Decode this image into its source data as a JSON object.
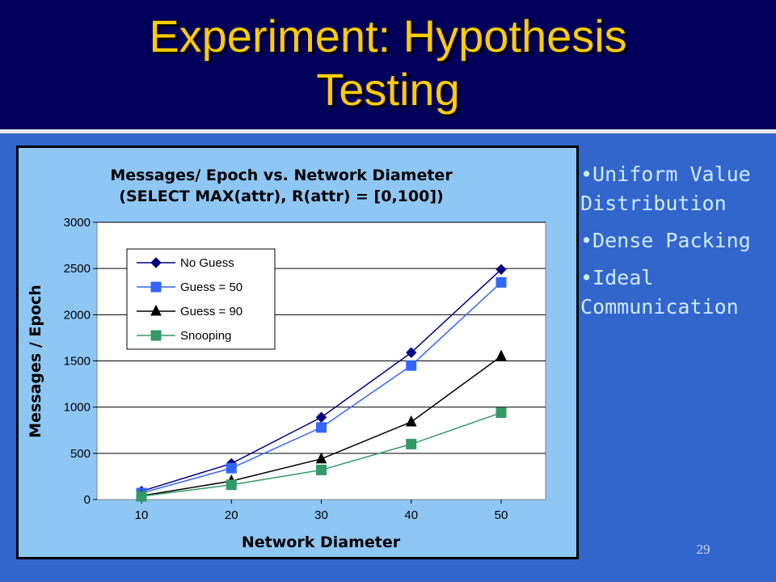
{
  "slide": {
    "title_line1": "Experiment: Hypothesis",
    "title_line2": "Testing",
    "bullets": [
      "•Uniform Value Distribution",
      "•Dense Packing",
      "•Ideal Communication"
    ],
    "page_number": "29"
  },
  "colors": {
    "title": "#ffcc00",
    "title_band": "#00005a",
    "slide_bg": "#3366cc",
    "chart_bg": "#8ec6f4",
    "bullet_text": "#ccecff"
  },
  "chart_data": {
    "type": "line",
    "title": "Messages/ Epoch vs. Network Diameter",
    "subtitle": "(SELECT MAX(attr), R(attr) = [0,100])",
    "xlabel": "Network Diameter",
    "ylabel": "Messages / Epoch",
    "x": [
      10,
      20,
      30,
      40,
      50
    ],
    "x_ticks": [
      "10",
      "20",
      "30",
      "40",
      "50"
    ],
    "y_ticks": [
      "0",
      "500",
      "1000",
      "1500",
      "2000",
      "2500",
      "3000"
    ],
    "ylim": [
      0,
      3000
    ],
    "grid": true,
    "legend_position": "top-left",
    "series": [
      {
        "name": "No Guess",
        "values": [
          90,
          390,
          890,
          1590,
          2490
        ],
        "color": "#000080",
        "marker": "diamond"
      },
      {
        "name": "Guess = 50",
        "values": [
          70,
          340,
          780,
          1450,
          2350
        ],
        "color": "#3366ff",
        "marker": "square"
      },
      {
        "name": "Guess = 90",
        "values": [
          40,
          200,
          440,
          840,
          1550
        ],
        "color": "#000000",
        "marker": "triangle"
      },
      {
        "name": "Snooping",
        "values": [
          35,
          160,
          320,
          600,
          940
        ],
        "color": "#339966",
        "marker": "square"
      }
    ]
  }
}
